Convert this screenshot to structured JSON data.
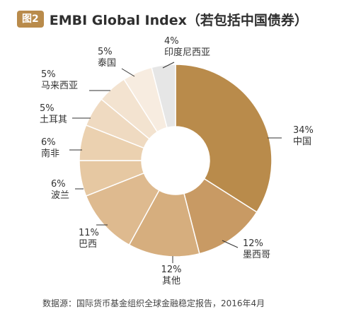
{
  "header": {
    "badge": "图2",
    "title": "EMBI Global Index（若包括中国债券）"
  },
  "source": "数据源：国际货币基金组织全球金融稳定报告，2016年4月",
  "chart_data": {
    "type": "pie",
    "donut": true,
    "start_angle_deg": 0,
    "direction": "clockwise",
    "slices": [
      {
        "name": "中国",
        "label": "34%",
        "value": 34,
        "color": "#b98b4b"
      },
      {
        "name": "墨西哥",
        "label": "12%",
        "value": 12,
        "color": "#c89a64"
      },
      {
        "name": "其他",
        "label": "12%",
        "value": 12,
        "color": "#d6ae7e"
      },
      {
        "name": "巴西",
        "label": "11%",
        "value": 11,
        "color": "#deba8f"
      },
      {
        "name": "波兰",
        "label": "6%",
        "value": 6,
        "color": "#e6c8a2"
      },
      {
        "name": "南非",
        "label": "6%",
        "value": 6,
        "color": "#ebd1b0"
      },
      {
        "name": "土耳其",
        "label": "5%",
        "value": 5,
        "color": "#efdac1"
      },
      {
        "name": "马来西亚",
        "label": "5%",
        "value": 5,
        "color": "#f3e3d0"
      },
      {
        "name": "泰国",
        "label": "5%",
        "value": 5,
        "color": "#f7ece0"
      },
      {
        "name": "印度尼西亚",
        "label": "4%",
        "value": 4,
        "color": "#e6e6e6"
      }
    ]
  }
}
